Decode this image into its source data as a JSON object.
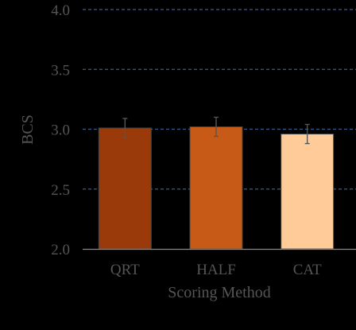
{
  "chart_data": {
    "type": "bar",
    "title": "",
    "xlabel": "Scoring Method",
    "ylabel": "BCS",
    "categories": [
      "QRT",
      "HALF",
      "CAT"
    ],
    "values": [
      3.01,
      3.02,
      2.96
    ],
    "error": [
      0.08,
      0.08,
      0.08
    ],
    "ylim": [
      2.0,
      4.0
    ],
    "yticks": [
      "2.0",
      "2.5",
      "3.0",
      "3.5",
      "4.0"
    ],
    "grid": true,
    "legend": "none",
    "colors": {
      "bars": [
        "#9a3a0a",
        "#c85a18",
        "#ffcc99"
      ],
      "bar_outline": "#444444",
      "gridline": "#3b5a8c",
      "axis": "#888888",
      "text": "#555555",
      "error_bar": "#555555",
      "background": "#000000"
    }
  }
}
